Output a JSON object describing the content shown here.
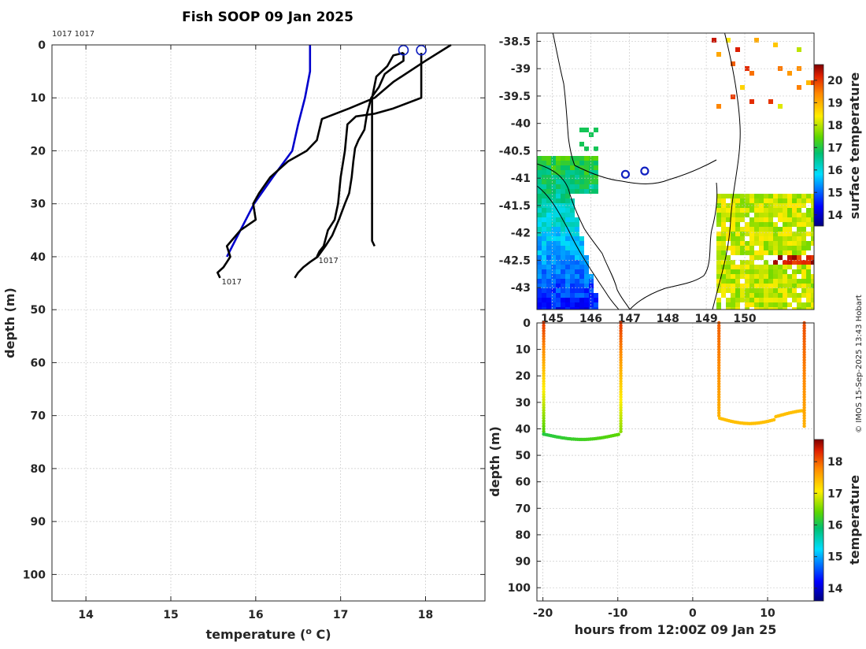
{
  "title": "Fish SOOP 09 Jan 2025",
  "credit": "© IMOS 15-Sep-2025 13:43 Hobart",
  "chart_data": [
    {
      "type": "line",
      "name": "temperature-depth-profiles",
      "xlabel": "temperature (",
      "xlabel_sup": "o",
      "xlabel_tail": " C)",
      "ylabel": "depth (m)",
      "xlim": [
        13.6,
        18.7
      ],
      "ylim": [
        105,
        0
      ],
      "xticks": [
        14,
        15,
        16,
        17,
        18
      ],
      "yticks": [
        0,
        10,
        20,
        30,
        40,
        50,
        60,
        70,
        80,
        90,
        100
      ],
      "top_labels": "1017 1017",
      "series": [
        {
          "name": "reference",
          "color": "#0000cc",
          "points": [
            [
              16.64,
              0
            ],
            [
              16.64,
              5
            ],
            [
              16.58,
              10
            ],
            [
              16.5,
              15
            ],
            [
              16.43,
              20
            ],
            [
              16.2,
              25
            ],
            [
              15.98,
              30
            ],
            [
              15.82,
              35
            ],
            [
              15.66,
              40
            ]
          ]
        },
        {
          "name": "profile-1",
          "color": "#000000",
          "label": "1017",
          "points": [
            [
              18.3,
              0
            ],
            [
              18.0,
              3
            ],
            [
              17.62,
              7
            ],
            [
              17.4,
              10
            ],
            [
              17.1,
              12
            ],
            [
              16.78,
              14
            ],
            [
              16.72,
              18
            ],
            [
              16.6,
              20
            ],
            [
              16.38,
              22
            ],
            [
              16.17,
              25
            ],
            [
              16.04,
              28
            ],
            [
              15.97,
              30
            ],
            [
              16.0,
              33
            ],
            [
              15.82,
              35
            ],
            [
              15.66,
              38
            ],
            [
              15.7,
              40
            ],
            [
              15.66,
              41
            ],
            [
              15.62,
              42
            ],
            [
              15.55,
              43
            ],
            [
              15.58,
              44
            ]
          ]
        },
        {
          "name": "profile-2",
          "color": "#000000",
          "label": "1017",
          "points": [
            [
              17.95,
              1.5
            ],
            [
              17.95,
              3
            ],
            [
              17.95,
              10
            ],
            [
              17.62,
              12
            ],
            [
              17.4,
              13
            ],
            [
              17.18,
              13.5
            ],
            [
              17.08,
              15
            ],
            [
              17.05,
              20
            ],
            [
              17.0,
              25
            ],
            [
              16.97,
              30
            ],
            [
              16.93,
              33
            ],
            [
              16.85,
              35
            ],
            [
              16.8,
              38
            ],
            [
              16.75,
              39
            ],
            [
              16.72,
              40
            ]
          ]
        },
        {
          "name": "profile-3",
          "color": "#000000",
          "points": [
            [
              17.74,
              1.5
            ],
            [
              17.74,
              3
            ],
            [
              17.6,
              4.5
            ],
            [
              17.52,
              5.5
            ],
            [
              17.45,
              8
            ],
            [
              17.36,
              10
            ],
            [
              17.31,
              13
            ],
            [
              17.28,
              16
            ],
            [
              17.21,
              18
            ],
            [
              17.17,
              19.5
            ],
            [
              17.15,
              22
            ],
            [
              17.13,
              25
            ],
            [
              17.1,
              28
            ],
            [
              17.05,
              30
            ],
            [
              16.98,
              33
            ],
            [
              16.9,
              36
            ],
            [
              16.82,
              38
            ],
            [
              16.73,
              40
            ],
            [
              16.64,
              41
            ],
            [
              16.56,
              42
            ],
            [
              16.5,
              43
            ],
            [
              16.46,
              44
            ]
          ]
        },
        {
          "name": "profile-4",
          "color": "#000000",
          "points": [
            [
              17.74,
              1.5
            ],
            [
              17.62,
              2
            ],
            [
              17.55,
              4
            ],
            [
              17.42,
              6
            ],
            [
              17.37,
              10
            ],
            [
              17.37,
              15
            ],
            [
              17.37,
              20
            ],
            [
              17.37,
              25
            ],
            [
              17.37,
              30
            ],
            [
              17.37,
              35
            ],
            [
              17.37,
              37
            ],
            [
              17.4,
              38
            ]
          ]
        }
      ],
      "markers": [
        {
          "name": "cast-1",
          "x": 17.74,
          "y": 1
        },
        {
          "name": "cast-2",
          "x": 17.95,
          "y": 1
        }
      ]
    },
    {
      "type": "heatmap",
      "name": "surface-temperature-map",
      "xlim": [
        144.6,
        151.8
      ],
      "ylim": [
        -43.4,
        -38.35
      ],
      "xticks": [
        145,
        146,
        147,
        148,
        149,
        150
      ],
      "xticklabels": [
        "145",
        "146",
        "147",
        "148",
        "149",
        "150"
      ],
      "yticks": [
        -38.5,
        -39,
        -39.5,
        -40,
        -40.5,
        -41,
        -41.5,
        -42,
        -42.5,
        -43
      ],
      "yticklabels": [
        "-38.5",
        "-39",
        "-39.5",
        "-40",
        "-40.5",
        "-41",
        "-41.5",
        "-42",
        "-42.5",
        "-43"
      ],
      "colorbar_label": "surface temperature",
      "colorbar_range": [
        13.5,
        20.7
      ],
      "colorbar_ticks": [
        14,
        15,
        16,
        17,
        18,
        19,
        20
      ],
      "cast_locations": [
        [
          146.9,
          -40.93
        ],
        [
          147.4,
          -40.87
        ]
      ]
    },
    {
      "type": "scatter",
      "name": "depth-time-section",
      "xlabel": "hours from 12:00Z 09 Jan 25",
      "ylabel": "depth (m)",
      "xlim": [
        -20.8,
        16.2
      ],
      "ylim": [
        105,
        0
      ],
      "xticks": [
        -20,
        -10,
        0,
        10
      ],
      "yticks": [
        0,
        10,
        20,
        30,
        40,
        50,
        60,
        70,
        80,
        90,
        100
      ],
      "colorbar_label": "temperature",
      "colorbar_range": [
        13.6,
        18.7
      ],
      "colorbar_ticks": [
        14,
        15,
        16,
        17,
        18
      ]
    }
  ]
}
